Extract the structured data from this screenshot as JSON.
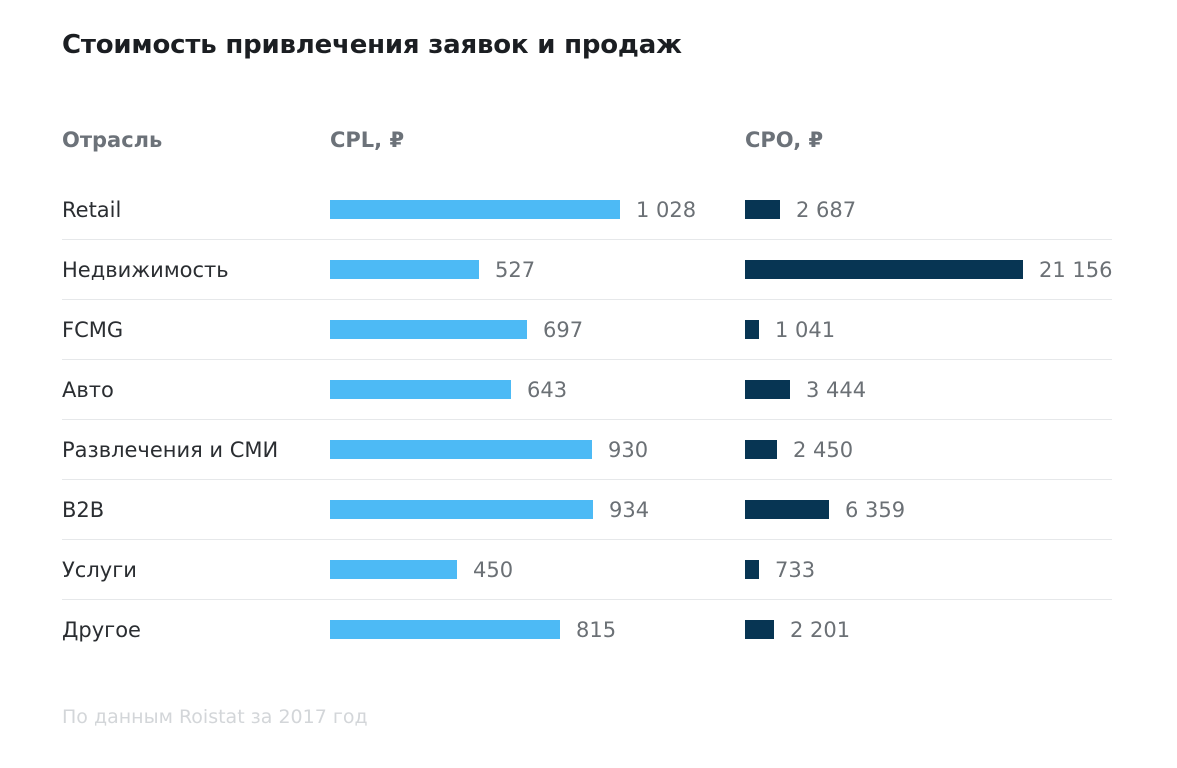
{
  "title": "Стоимость привлечения заявок и продаж",
  "headers": {
    "industry": "Отрасль",
    "cpl": "CPL, ₽",
    "cpo": "CPO, ₽"
  },
  "source": "По данным Roistat за 2017 год",
  "colors": {
    "cpl": "#4dbaf5",
    "cpo": "#073553"
  },
  "chart_data": {
    "type": "bar",
    "orientation": "horizontal",
    "categories": [
      "Retail",
      "Недвижимость",
      "FCMG",
      "Авто",
      "Развлечения и СМИ",
      "B2B",
      "Услуги",
      "Другое"
    ],
    "series": [
      {
        "name": "CPL, ₽",
        "values": [
          1028,
          527,
          697,
          643,
          930,
          934,
          450,
          815
        ],
        "labels": [
          "1 028",
          "527",
          "697",
          "643",
          "930",
          "934",
          "450",
          "815"
        ]
      },
      {
        "name": "CPO, ₽",
        "values": [
          2687,
          21156,
          1041,
          3444,
          2450,
          6359,
          733,
          2201
        ],
        "labels": [
          "2 687",
          "21 156",
          "1 041",
          "3 444",
          "2 450",
          "6 359",
          "733",
          "2 201"
        ]
      }
    ],
    "grid": false
  }
}
